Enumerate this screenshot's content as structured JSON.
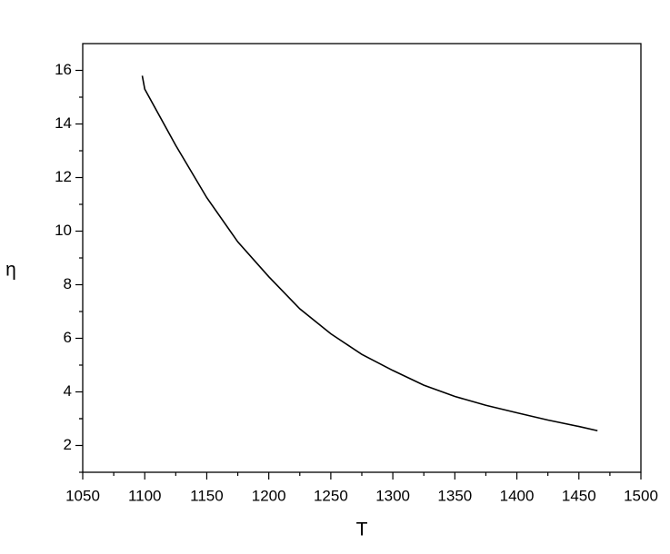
{
  "chart_data": {
    "type": "line",
    "x_label": "T",
    "y_label": "η",
    "x": [
      1098,
      1100,
      1125,
      1150,
      1175,
      1200,
      1225,
      1250,
      1275,
      1300,
      1325,
      1350,
      1375,
      1400,
      1425,
      1450,
      1465
    ],
    "series": [
      {
        "color": "#000000",
        "values": [
          15.8,
          15.3,
          13.2,
          11.25,
          9.6,
          8.3,
          7.1,
          6.17,
          5.4,
          4.8,
          4.25,
          3.83,
          3.5,
          3.22,
          2.95,
          2.71,
          2.55
        ]
      }
    ],
    "xlim": [
      1050,
      1500
    ],
    "xticks": [
      1050,
      1100,
      1150,
      1200,
      1250,
      1300,
      1350,
      1400,
      1450,
      1500
    ],
    "ylim": [
      1,
      17
    ],
    "yticks": [
      2,
      4,
      6,
      8,
      10,
      12,
      14,
      16
    ],
    "grid": false
  }
}
